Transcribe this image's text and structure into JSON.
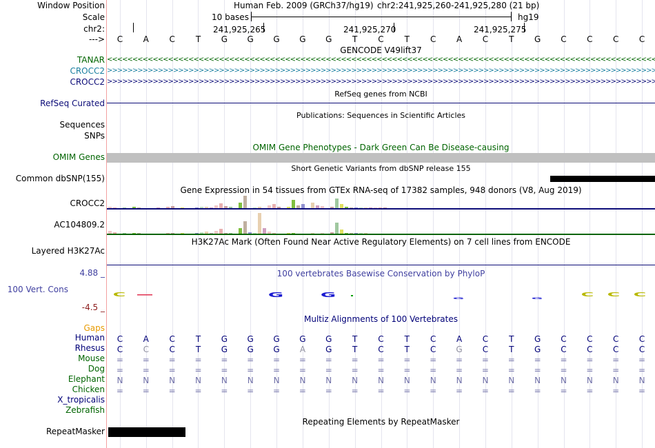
{
  "header": {
    "assembly": "Human Feb. 2009 (GRCh37/hg19)",
    "position": "chr2:241,925,260-241,925,280 (21 bp)",
    "scale_text": "10 bases",
    "scale_db": "hg19",
    "tick_labels": [
      "241,925,265",
      "241,925,270",
      "241,925,275"
    ],
    "strand_arrow": "--->",
    "bases": [
      "C",
      "A",
      "C",
      "T",
      "G",
      "G",
      "G",
      "G",
      "G",
      "T",
      "C",
      "T",
      "C",
      "A",
      "C",
      "T",
      "G",
      "C",
      "C",
      "C",
      "C"
    ]
  },
  "left_labels": {
    "window_position": "Window Position",
    "scale": "Scale",
    "chr": "chr2:",
    "strand": "--->",
    "tanar": "TANAR",
    "crocc2_a": "CROCC2",
    "crocc2_b": "CROCC2",
    "refseq": "RefSeq Curated",
    "sequences": "Sequences",
    "snps": "SNPs",
    "omim": "OMIM Genes",
    "dbsnp": "Common dbSNP(155)",
    "gtex_crocc2": "CROCC2",
    "gtex_ac": "AC104809.2",
    "h3k27ac": "Layered H3K27Ac",
    "cons_max": "4.88 _",
    "cons": "100 Vert. Cons",
    "cons_min": "-4.5 _",
    "gaps": "Gaps",
    "species": [
      "Human",
      "Rhesus",
      "Mouse",
      "Dog",
      "Elephant",
      "Chicken",
      "X_tropicalis",
      "Zebrafish"
    ],
    "repeatmasker": "RepeatMasker"
  },
  "tracks": {
    "gencode": "GENCODE V49lift37",
    "refseq_title": "RefSeq genes from NCBI",
    "publications": "Publications: Sequences in Scientific Articles",
    "omim_title": "OMIM Gene Phenotypes - Dark Green Can Be Disease-causing",
    "dbsnp_title": "Short Genetic Variants from dbSNP release 155",
    "gtex_title": "Gene Expression in 54 tissues from GTEx RNA-seq of 17382 samples, 948 donors (V8, Aug 2019)",
    "h3k27ac_title": "H3K27Ac Mark (Often Found Near Active Regulatory Elements) on 7 cell lines from ENCODE",
    "phylop_title": "100 vertebrates Basewise Conservation by PhyloP",
    "multiz_title": "Multiz Alignments of 100 Vertebrates",
    "repeatmasker_title": "Repeating Elements by RepeatMasker"
  },
  "alignments": {
    "human": [
      "C",
      "A",
      "C",
      "T",
      "G",
      "G",
      "G",
      "G",
      "G",
      "T",
      "C",
      "T",
      "C",
      "A",
      "C",
      "T",
      "G",
      "C",
      "C",
      "C",
      "C"
    ],
    "rhesus": [
      "C",
      "C",
      "C",
      "T",
      "G",
      "G",
      "G",
      "A",
      "G",
      "T",
      "C",
      "T",
      "C",
      "G",
      "C",
      "T",
      "G",
      "C",
      "C",
      "C",
      "C"
    ],
    "mouse": [
      "=",
      "=",
      "=",
      "=",
      "=",
      "=",
      "=",
      "=",
      "=",
      "=",
      "=",
      "=",
      "=",
      "=",
      "=",
      "=",
      "=",
      "=",
      "=",
      "=",
      "="
    ],
    "dog": [
      "=",
      "=",
      "=",
      "=",
      "=",
      "=",
      "=",
      "=",
      "=",
      "=",
      "=",
      "=",
      "=",
      "=",
      "=",
      "=",
      "=",
      "=",
      "=",
      "=",
      "="
    ],
    "elephant": [
      "N",
      "N",
      "N",
      "N",
      "N",
      "N",
      "N",
      "N",
      "N",
      "N",
      "N",
      "N",
      "N",
      "N",
      "N",
      "N",
      "N",
      "N",
      "N",
      "N",
      "N"
    ],
    "chicken": [
      "=",
      "=",
      "=",
      "=",
      "=",
      "=",
      "=",
      "=",
      "=",
      "=",
      "=",
      "=",
      "=",
      "=",
      "=",
      "=",
      "=",
      "=",
      "=",
      "=",
      "="
    ]
  },
  "colors": {
    "tanar": "#006400",
    "crocc2_a": "#1a7fa0",
    "crocc2_b": "#0c0c78",
    "refseq": "#0c0c78",
    "label_blue": "#000078",
    "gaps": "#e89a00",
    "cons_label": "#4040a0",
    "cons_min": "#8b1a1a",
    "species": "#006400",
    "track_green": "#006400"
  }
}
